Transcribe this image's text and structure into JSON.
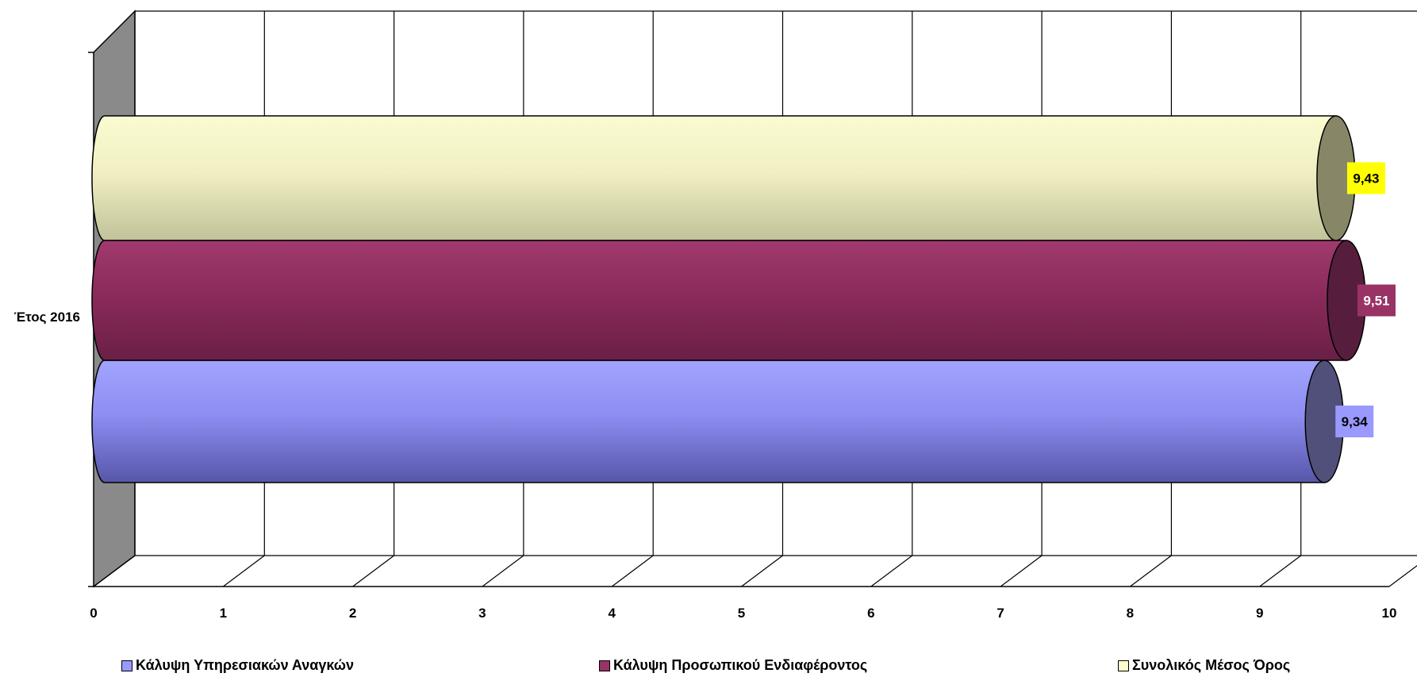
{
  "chart_data": {
    "type": "bar",
    "orientation": "horizontal",
    "style": "3d-cylinder",
    "categories": [
      "Έτος 2016"
    ],
    "series": [
      {
        "name": "Κάλυψη Υπηρεσιακών Αναγκών",
        "values": [
          9.34
        ],
        "label": "9,34",
        "color": "#9999FF",
        "label_bg": "#9999FF",
        "label_color": "#000000"
      },
      {
        "name": "Κάλυψη Προσωπικού Ενδιαφέροντος",
        "values": [
          9.51
        ],
        "label": "9,51",
        "color": "#993366",
        "label_bg": "#993366",
        "label_color": "#FFFFFF"
      },
      {
        "name": "Συνολικός Μέσος Όρος",
        "values": [
          9.43
        ],
        "label": "9,43",
        "color": "#FFFFCC",
        "label_bg": "#FFFF00",
        "label_color": "#000000"
      }
    ],
    "x_ticks": [
      "0",
      "1",
      "2",
      "3",
      "4",
      "5",
      "6",
      "7",
      "8",
      "9",
      "10"
    ],
    "xlim": [
      0,
      10
    ],
    "grid": true,
    "legend": "bottom",
    "title": "",
    "xlabel": "",
    "ylabel": ""
  }
}
